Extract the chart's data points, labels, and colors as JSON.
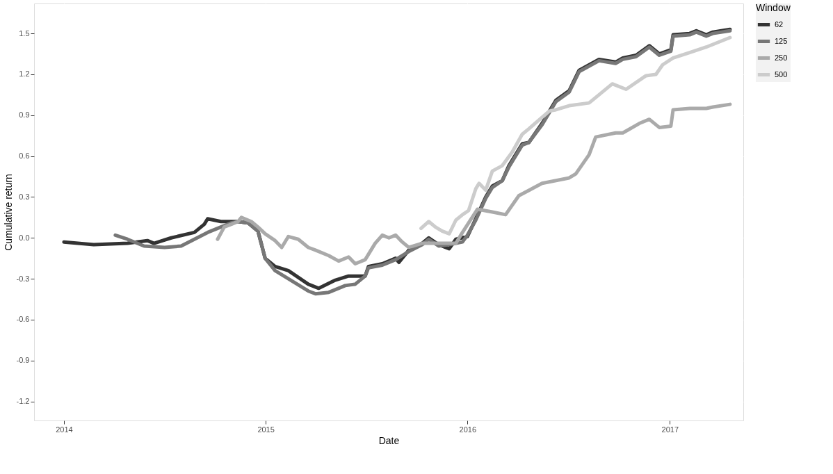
{
  "chart_data": {
    "type": "line",
    "xlabel": "Date",
    "ylabel": "Cumulative return",
    "legend_title": "Window",
    "legend": "right",
    "grid": true,
    "line_style": "solid",
    "marker": "none",
    "xlim": [
      "2013-11-08",
      "2017-05-14"
    ],
    "xticks": [
      {
        "value": "2014-01-01",
        "label": "2014"
      },
      {
        "value": "2015-01-01",
        "label": "2015"
      },
      {
        "value": "2016-01-01",
        "label": "2016"
      },
      {
        "value": "2017-01-01",
        "label": "2017"
      }
    ],
    "ylim": [
      -1.34,
      1.72
    ],
    "yticks": [
      {
        "value": -1.2,
        "label": "-1.2"
      },
      {
        "value": -0.9,
        "label": "-0.9"
      },
      {
        "value": -0.6,
        "label": "-0.6"
      },
      {
        "value": -0.3,
        "label": "-0.3"
      },
      {
        "value": 0,
        "label": "0.0"
      },
      {
        "value": 0.3,
        "label": "0.3"
      },
      {
        "value": 0.6,
        "label": "0.6"
      },
      {
        "value": 0.9,
        "label": "0.9"
      },
      {
        "value": 1.2,
        "label": "1.2"
      },
      {
        "value": 1.5,
        "label": "1.5"
      }
    ],
    "series": [
      {
        "name": "62",
        "color": "#333333",
        "x": [
          "2014-01-01",
          "2014-02-24",
          "2014-04-26",
          "2014-06-01",
          "2014-06-13",
          "2014-07-14",
          "2014-08-25",
          "2014-09-12",
          "2014-09-18",
          "2014-10-12",
          "2014-11-12",
          "2014-11-30",
          "2014-12-18",
          "2014-12-31",
          "2015-01-18",
          "2015-02-11",
          "2015-03-19",
          "2015-04-07",
          "2015-05-07",
          "2015-05-31",
          "2015-06-30",
          "2015-07-06",
          "2015-07-31",
          "2015-08-24",
          "2015-08-30",
          "2015-09-17",
          "2015-10-11",
          "2015-10-23",
          "2015-11-10",
          "2015-11-29",
          "2015-12-11",
          "2016-01-01",
          "2016-01-16",
          "2016-02-03",
          "2016-02-15",
          "2016-03-04",
          "2016-03-16",
          "2016-04-09",
          "2016-04-21",
          "2016-05-15",
          "2016-06-09",
          "2016-07-03",
          "2016-07-21",
          "2016-08-26",
          "2016-09-25",
          "2016-10-08",
          "2016-11-01",
          "2016-11-25",
          "2016-12-13",
          "2017-01-03",
          "2017-01-07",
          "2017-02-06",
          "2017-02-18",
          "2017-03-08",
          "2017-03-20",
          "2017-04-20"
        ],
        "values": [
          -0.03,
          -0.05,
          -0.04,
          -0.02,
          -0.04,
          0.0,
          0.04,
          0.1,
          0.14,
          0.12,
          0.12,
          0.11,
          0.05,
          -0.15,
          -0.21,
          -0.24,
          -0.34,
          -0.37,
          -0.31,
          -0.28,
          -0.28,
          -0.21,
          -0.19,
          -0.15,
          -0.18,
          -0.09,
          -0.04,
          0.0,
          -0.05,
          -0.08,
          -0.01,
          0.01,
          0.14,
          0.3,
          0.38,
          0.42,
          0.53,
          0.69,
          0.7,
          0.84,
          1.01,
          1.08,
          1.23,
          1.31,
          1.29,
          1.32,
          1.34,
          1.41,
          1.35,
          1.38,
          1.49,
          1.5,
          1.52,
          1.49,
          1.51,
          1.53
        ]
      },
      {
        "name": "125",
        "color": "#777777",
        "x": [
          "2014-04-04",
          "2014-04-26",
          "2014-05-26",
          "2014-07-02",
          "2014-08-01",
          "2014-08-25",
          "2014-09-18",
          "2014-10-12",
          "2014-10-31",
          "2014-11-12",
          "2014-11-30",
          "2014-12-18",
          "2014-12-31",
          "2015-01-18",
          "2015-03-19",
          "2015-04-01",
          "2015-04-25",
          "2015-05-25",
          "2015-06-12",
          "2015-06-30",
          "2015-07-06",
          "2015-07-31",
          "2015-08-24",
          "2015-09-17",
          "2015-10-11",
          "2015-10-23",
          "2015-11-10",
          "2015-11-29",
          "2015-12-23",
          "2016-01-01",
          "2016-01-16",
          "2016-02-03",
          "2016-02-15",
          "2016-03-04",
          "2016-03-16",
          "2016-04-09",
          "2016-04-21",
          "2016-05-15",
          "2016-06-09",
          "2016-07-03",
          "2016-07-21",
          "2016-08-26",
          "2016-09-25",
          "2016-10-08",
          "2016-11-01",
          "2016-11-25",
          "2016-12-13",
          "2017-01-03",
          "2017-01-07",
          "2017-02-06",
          "2017-02-18",
          "2017-03-08",
          "2017-03-20",
          "2017-04-20"
        ],
        "values": [
          0.02,
          -0.01,
          -0.06,
          -0.07,
          -0.06,
          -0.01,
          0.04,
          0.08,
          0.11,
          0.12,
          0.11,
          0.05,
          -0.15,
          -0.24,
          -0.39,
          -0.41,
          -0.4,
          -0.35,
          -0.34,
          -0.28,
          -0.22,
          -0.2,
          -0.16,
          -0.1,
          -0.05,
          -0.01,
          -0.06,
          -0.05,
          -0.03,
          0.02,
          0.13,
          0.29,
          0.37,
          0.42,
          0.52,
          0.68,
          0.7,
          0.83,
          1.0,
          1.07,
          1.22,
          1.3,
          1.28,
          1.31,
          1.33,
          1.4,
          1.34,
          1.37,
          1.48,
          1.49,
          1.51,
          1.48,
          1.5,
          1.52
        ]
      },
      {
        "name": "250",
        "color": "#aaaaaa",
        "x": [
          "2014-10-06",
          "2014-10-18",
          "2014-10-31",
          "2014-11-12",
          "2014-11-18",
          "2014-12-06",
          "2014-12-18",
          "2014-12-31",
          "2015-01-18",
          "2015-01-30",
          "2015-02-11",
          "2015-03-01",
          "2015-03-19",
          "2015-04-01",
          "2015-04-25",
          "2015-05-13",
          "2015-05-31",
          "2015-06-12",
          "2015-06-30",
          "2015-07-18",
          "2015-07-31",
          "2015-08-12",
          "2015-08-24",
          "2015-09-05",
          "2015-09-17",
          "2015-10-11",
          "2015-11-04",
          "2015-12-11",
          "2015-12-23",
          "2016-01-19",
          "2016-02-15",
          "2016-03-10",
          "2016-04-03",
          "2016-05-15",
          "2016-07-03",
          "2016-07-15",
          "2016-08-08",
          "2016-08-20",
          "2016-09-25",
          "2016-10-08",
          "2016-11-07",
          "2016-11-25",
          "2016-12-13",
          "2017-01-03",
          "2017-01-07",
          "2017-02-06",
          "2017-03-08",
          "2017-03-20",
          "2017-04-20"
        ],
        "values": [
          -0.01,
          0.08,
          0.1,
          0.12,
          0.15,
          0.12,
          0.08,
          0.03,
          -0.02,
          -0.07,
          0.01,
          -0.01,
          -0.07,
          -0.09,
          -0.13,
          -0.17,
          -0.14,
          -0.19,
          -0.16,
          -0.04,
          0.02,
          0.0,
          0.02,
          -0.03,
          -0.07,
          -0.04,
          -0.04,
          -0.04,
          0.04,
          0.21,
          0.19,
          0.17,
          0.31,
          0.4,
          0.44,
          0.47,
          0.61,
          0.74,
          0.77,
          0.77,
          0.84,
          0.87,
          0.81,
          0.82,
          0.94,
          0.95,
          0.95,
          0.96,
          0.98
        ]
      },
      {
        "name": "500",
        "color": "#cccccc",
        "x": [
          "2015-10-09",
          "2015-10-23",
          "2015-11-04",
          "2015-11-16",
          "2015-11-29",
          "2015-12-11",
          "2015-12-23",
          "2016-01-03",
          "2016-01-16",
          "2016-01-22",
          "2016-02-03",
          "2016-02-15",
          "2016-03-04",
          "2016-03-22",
          "2016-04-09",
          "2016-04-21",
          "2016-05-28",
          "2016-06-09",
          "2016-07-03",
          "2016-08-08",
          "2016-09-19",
          "2016-10-14",
          "2016-11-19",
          "2016-12-07",
          "2016-12-19",
          "2017-01-07",
          "2017-02-06",
          "2017-03-08",
          "2017-04-20"
        ],
        "values": [
          0.07,
          0.12,
          0.08,
          0.05,
          0.03,
          0.13,
          0.17,
          0.2,
          0.36,
          0.4,
          0.35,
          0.49,
          0.53,
          0.63,
          0.76,
          0.8,
          0.93,
          0.94,
          0.97,
          0.99,
          1.13,
          1.09,
          1.19,
          1.2,
          1.27,
          1.32,
          1.36,
          1.4,
          1.47
        ]
      }
    ]
  }
}
